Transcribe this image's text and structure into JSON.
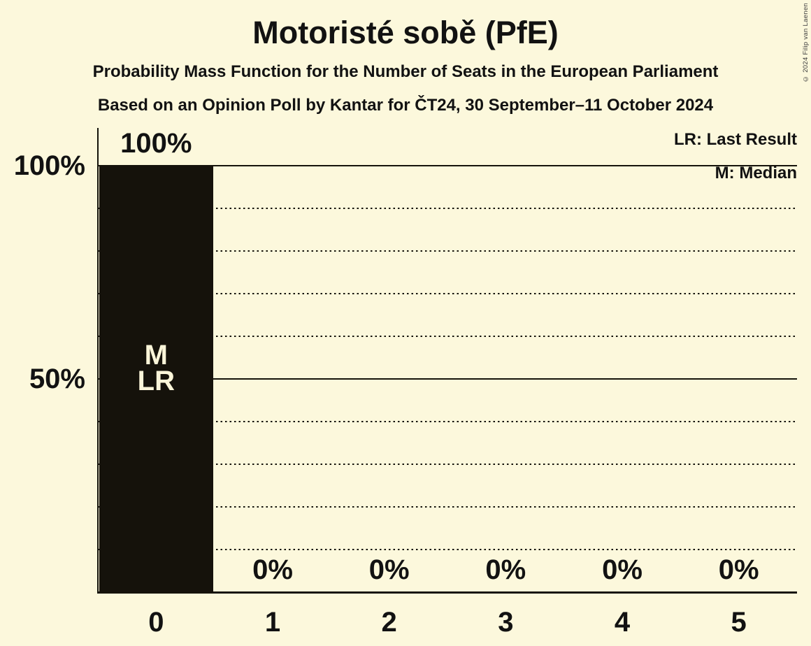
{
  "title": "Motoristé sobě (PfE)",
  "subtitle1": "Probability Mass Function for the Number of Seats in the European Parliament",
  "subtitle2": "Based on an Opinion Poll by Kantar for ČT24, 30 September–11 October 2024",
  "copyright": "© 2024 Filip van Laenen",
  "legend": {
    "lr": "LR: Last Result",
    "m": "M: Median"
  },
  "colors": {
    "background": "#fcf8dc",
    "bar": "#15120b",
    "text": "#121212",
    "bar_label": "#faf5d9",
    "line": "#15130b"
  },
  "chart_data": {
    "type": "bar",
    "title": "Motoristé sobě (PfE)",
    "categories": [
      "0",
      "1",
      "2",
      "3",
      "4",
      "5"
    ],
    "values": [
      100,
      0,
      0,
      0,
      0,
      0
    ],
    "value_labels": [
      "100%",
      "0%",
      "0%",
      "0%",
      "0%",
      "0%"
    ],
    "bar_annotations": [
      [
        "M",
        "LR"
      ],
      [],
      [],
      [],
      [],
      []
    ],
    "median_category": "0",
    "last_result_category": "0",
    "yticks": [
      {
        "value": 100,
        "label": "100%"
      },
      {
        "value": 50,
        "label": "50%"
      }
    ],
    "ylim": [
      0,
      100
    ],
    "gridlines": {
      "dotted_step": 10,
      "solid": [
        50,
        100
      ]
    },
    "legend_position": "top-right",
    "xlabel": "",
    "ylabel": ""
  }
}
